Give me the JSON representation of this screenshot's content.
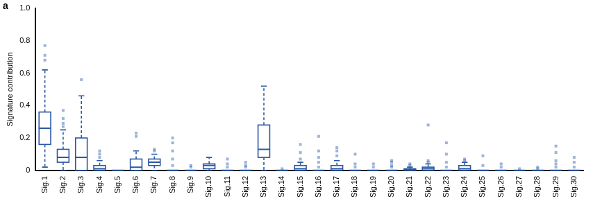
{
  "chart_data": {
    "type": "box",
    "panel_label": "a",
    "y_label": "Signature contribution",
    "categories": [
      "Sig.1",
      "Sig.2",
      "Sig.3",
      "Sig.4",
      "Sig.5",
      "Sig.6",
      "Sig.7",
      "Sig.8",
      "Sig.9",
      "Sig.10",
      "Sig.11",
      "Sig.12",
      "Sig.13",
      "Sig.14",
      "Sig.15",
      "Sig.16",
      "Sig.17",
      "Sig.18",
      "Sig.19",
      "Sig.20",
      "Sig.21",
      "Sig.22",
      "Sig.23",
      "Sig.24",
      "Sig.25",
      "Sig.26",
      "Sig.27",
      "Sig.28",
      "Sig.29",
      "Sig.30"
    ],
    "whisker_low": [
      0.02,
      0,
      0,
      0,
      0,
      0,
      0,
      0,
      0,
      0,
      0,
      0,
      0,
      0,
      0,
      0,
      0,
      0,
      0,
      0,
      0,
      0,
      0,
      0,
      0,
      0,
      0,
      0,
      0,
      0
    ],
    "q1": [
      0.16,
      0.05,
      0,
      0,
      0,
      0,
      0.03,
      0,
      0,
      0.01,
      0,
      0,
      0.08,
      0,
      0,
      0,
      0,
      0,
      0,
      0,
      0,
      0,
      0,
      0,
      0,
      0,
      0,
      0,
      0,
      0
    ],
    "median": [
      0.26,
      0.08,
      0.08,
      0.01,
      0,
      0.02,
      0.05,
      0,
      0,
      0.03,
      0,
      0,
      0.13,
      0,
      0.01,
      0,
      0.01,
      0,
      0,
      0,
      0.005,
      0.01,
      0,
      0.01,
      0,
      0,
      0,
      0,
      0,
      0
    ],
    "q3": [
      0.36,
      0.13,
      0.2,
      0.03,
      0,
      0.07,
      0.07,
      0,
      0,
      0.04,
      0,
      0,
      0.28,
      0,
      0.03,
      0,
      0.03,
      0,
      0,
      0,
      0.01,
      0.02,
      0,
      0.03,
      0,
      0,
      0,
      0,
      0,
      0
    ],
    "whisker_high": [
      0.62,
      0.25,
      0.46,
      0.06,
      0,
      0.12,
      0.1,
      0,
      0,
      0.08,
      0,
      0,
      0.52,
      0,
      0.05,
      0,
      0.06,
      0,
      0,
      0,
      0.02,
      0.04,
      0,
      0.05,
      0,
      0,
      0,
      0,
      0,
      0
    ],
    "outliers": [
      [
        0.68,
        0.71,
        0.77
      ],
      [
        0.27,
        0.29,
        0.32,
        0.37
      ],
      [
        0.56
      ],
      [
        0.08,
        0.1,
        0.12
      ],
      [],
      [
        0.21,
        0.23
      ],
      [
        0.12,
        0.13
      ],
      [
        0.03,
        0.07,
        0.12,
        0.17,
        0.2
      ],
      [
        0.02,
        0.03
      ],
      [],
      [
        0.02,
        0.04,
        0.07
      ],
      [
        0.02,
        0.03,
        0.05
      ],
      [],
      [
        0.01
      ],
      [
        0.07,
        0.11,
        0.16
      ],
      [
        0.02,
        0.05,
        0.08,
        0.12,
        0.21
      ],
      [
        0.09,
        0.12,
        0.14
      ],
      [
        0.02,
        0.04,
        0.1
      ],
      [
        0.02,
        0.04
      ],
      [
        0.02,
        0.03,
        0.05,
        0.06
      ],
      [
        0.03,
        0.04
      ],
      [
        0.05,
        0.06,
        0.28
      ],
      [
        0.02,
        0.05,
        0.1,
        0.17
      ],
      [
        0.06,
        0.07
      ],
      [
        0.03,
        0.09
      ],
      [
        0.02,
        0.04
      ],
      [
        0.01
      ],
      [
        0.01,
        0.02
      ],
      [
        0.02,
        0.04,
        0.06,
        0.11,
        0.15
      ],
      [
        0.02,
        0.05,
        0.08
      ]
    ],
    "color": "#2b58a3",
    "ylim": [
      0,
      1
    ],
    "yticks": [
      0,
      0.2,
      0.4,
      0.6,
      0.8,
      {
        "value": 1,
        "label": "1.0"
      }
    ],
    "grid": false
  }
}
